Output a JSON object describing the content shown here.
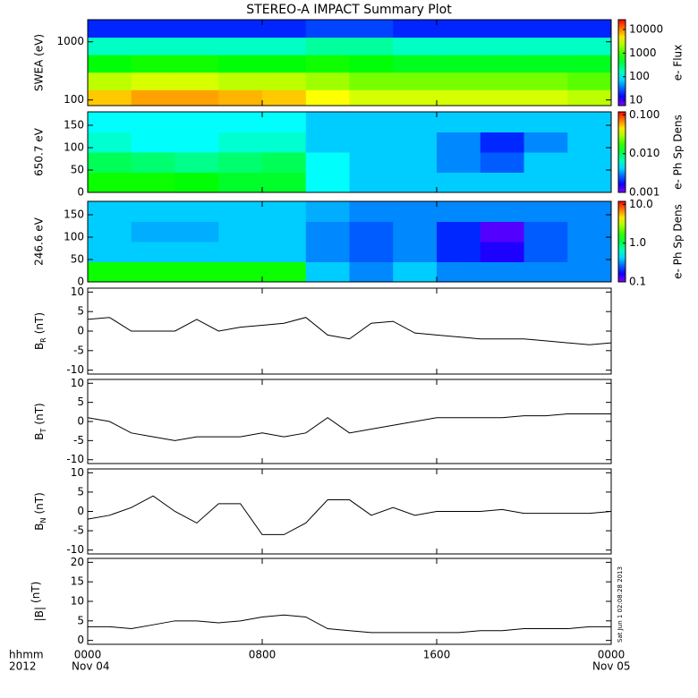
{
  "title": "STEREO-A IMPACT Summary Plot",
  "timestamp": "Sat Jun 1 02:08:28 2013",
  "x_axis": {
    "xlim": [
      0,
      24
    ],
    "xticks": [
      {
        "value": 0,
        "label": "0000"
      },
      {
        "value": 8,
        "label": "0800"
      },
      {
        "value": 16,
        "label": "1600"
      },
      {
        "value": 24,
        "label": "0000"
      }
    ],
    "dates": [
      "Nov 04",
      "Nov 05"
    ],
    "time_label": "hhmm",
    "year": "2012"
  },
  "chart_data": [
    {
      "type": "heatmap",
      "ylabel": "SWEA (eV)",
      "yscale": "log",
      "ylim": [
        80,
        2400
      ],
      "yticks": [
        100,
        1000
      ],
      "zlabel": "e- Flux",
      "zlim": [
        6,
        26000
      ],
      "zticks": [
        10,
        100,
        1000,
        10000
      ],
      "x": [
        0,
        2,
        4,
        6,
        8,
        10,
        12,
        14,
        16,
        18,
        20,
        22,
        24
      ],
      "y": [
        80,
        150,
        300,
        600,
        1200,
        2400
      ],
      "z": [
        [
          6000,
          8000,
          8000,
          7000,
          6000,
          4000,
          3000,
          3000,
          3000,
          3000,
          3000,
          2500
        ],
        [
          2500,
          3000,
          3000,
          2500,
          2500,
          2000,
          1500,
          1500,
          1500,
          1500,
          1500,
          1200
        ],
        [
          600,
          700,
          700,
          600,
          600,
          700,
          600,
          500,
          500,
          500,
          500,
          500
        ],
        [
          150,
          150,
          150,
          150,
          150,
          200,
          200,
          150,
          150,
          150,
          150,
          150
        ],
        [
          20,
          20,
          20,
          20,
          20,
          25,
          25,
          20,
          20,
          20,
          20,
          20
        ]
      ]
    },
    {
      "type": "heatmap",
      "ylabel": "650.7 eV",
      "yscale": "linear",
      "ylim": [
        0,
        180
      ],
      "yticks": [
        0,
        50,
        100,
        150
      ],
      "zlabel": "e- Ph Sp Dens",
      "zlim": [
        0.001,
        0.12
      ],
      "zticks": [
        0.001,
        {
          "value": 0.01,
          "label": "0.010"
        },
        {
          "value": 0.1,
          "label": "0.100"
        }
      ],
      "x": [
        0,
        2,
        4,
        6,
        8,
        10,
        12,
        14,
        16,
        18,
        20,
        22,
        24
      ],
      "y": [
        0,
        45,
        90,
        135,
        180
      ],
      "z": [
        [
          0.015,
          0.015,
          0.014,
          0.012,
          0.012,
          0.005,
          0.004,
          0.004,
          0.004,
          0.004,
          0.004,
          0.004
        ],
        [
          0.01,
          0.009,
          0.008,
          0.009,
          0.01,
          0.005,
          0.004,
          0.004,
          0.003,
          0.0025,
          0.004,
          0.004
        ],
        [
          0.006,
          0.005,
          0.005,
          0.006,
          0.006,
          0.004,
          0.004,
          0.004,
          0.003,
          0.002,
          0.003,
          0.004
        ],
        [
          0.005,
          0.005,
          0.005,
          0.005,
          0.005,
          0.004,
          0.004,
          0.004,
          0.004,
          0.004,
          0.004,
          0.004
        ]
      ]
    },
    {
      "type": "heatmap",
      "ylabel": "246.6 eV",
      "yscale": "linear",
      "ylim": [
        0,
        180
      ],
      "yticks": [
        0,
        50,
        100,
        150
      ],
      "zlabel": "e- Ph Sp Dens",
      "zlim": [
        0.1,
        12
      ],
      "zticks": [
        0.1,
        {
          "value": 1,
          "label": "1.0"
        },
        {
          "value": 10,
          "label": "10.0"
        }
      ],
      "x": [
        0,
        2,
        4,
        6,
        8,
        10,
        12,
        14,
        16,
        18,
        20,
        22,
        24
      ],
      "y": [
        0,
        45,
        90,
        135,
        180
      ],
      "z": [
        [
          1.5,
          1.5,
          1.5,
          1.5,
          1.5,
          0.4,
          0.3,
          0.4,
          0.3,
          0.3,
          0.3,
          0.3
        ],
        [
          0.4,
          0.4,
          0.4,
          0.4,
          0.4,
          0.3,
          0.25,
          0.3,
          0.2,
          0.15,
          0.25,
          0.3
        ],
        [
          0.4,
          0.35,
          0.35,
          0.4,
          0.4,
          0.3,
          0.25,
          0.3,
          0.2,
          0.12,
          0.25,
          0.3
        ],
        [
          0.4,
          0.4,
          0.4,
          0.4,
          0.4,
          0.35,
          0.3,
          0.3,
          0.3,
          0.3,
          0.3,
          0.3
        ]
      ]
    },
    {
      "type": "line",
      "ylabel": {
        "main": "B",
        "sub": "R",
        "unit": "(nT)"
      },
      "ylim": [
        -11,
        11
      ],
      "yticks": [
        -10,
        -5,
        0,
        5,
        10
      ],
      "color": "#000000",
      "x": [
        0,
        1,
        2,
        3,
        4,
        5,
        6,
        7,
        8,
        9,
        10,
        11,
        12,
        13,
        14,
        15,
        16,
        17,
        18,
        19,
        20,
        21,
        22,
        23,
        24
      ],
      "values": [
        3,
        3.5,
        0,
        0,
        0,
        3,
        0,
        1,
        1.5,
        2,
        3.5,
        -1,
        -2,
        2,
        2.5,
        -0.5,
        -1,
        -1.5,
        -2,
        -2,
        -2,
        -2.5,
        -3,
        -3.5,
        -3
      ]
    },
    {
      "type": "line",
      "ylabel": {
        "main": "B",
        "sub": "T",
        "unit": "(nT)"
      },
      "ylim": [
        -11,
        11
      ],
      "yticks": [
        -10,
        -5,
        0,
        5,
        10
      ],
      "color": "#000000",
      "x": [
        0,
        1,
        2,
        3,
        4,
        5,
        6,
        7,
        8,
        9,
        10,
        11,
        12,
        13,
        14,
        15,
        16,
        17,
        18,
        19,
        20,
        21,
        22,
        23,
        24
      ],
      "values": [
        1,
        0,
        -3,
        -4,
        -5,
        -4,
        -4,
        -4,
        -3,
        -4,
        -3,
        1,
        -3,
        -2,
        -1,
        0,
        1,
        1,
        1,
        1,
        1.5,
        1.5,
        2,
        2,
        2
      ]
    },
    {
      "type": "line",
      "ylabel": {
        "main": "B",
        "sub": "N",
        "unit": "(nT)"
      },
      "ylim": [
        -11,
        11
      ],
      "yticks": [
        -10,
        -5,
        0,
        5,
        10
      ],
      "color": "#000000",
      "x": [
        0,
        1,
        2,
        3,
        4,
        5,
        6,
        7,
        8,
        9,
        10,
        11,
        12,
        13,
        14,
        15,
        16,
        17,
        18,
        19,
        20,
        21,
        22,
        23,
        24
      ],
      "values": [
        -2,
        -1,
        1,
        4,
        0,
        -3,
        2,
        2,
        -6,
        -6,
        -3,
        3,
        3,
        -1,
        1,
        -1,
        0,
        0,
        0,
        0.5,
        -0.5,
        -0.5,
        -0.5,
        -0.5,
        0
      ]
    },
    {
      "type": "line",
      "ylabel": {
        "main": "|B|",
        "sub": "",
        "unit": "(nT)"
      },
      "ylim": [
        -1,
        21
      ],
      "yticks": [
        0,
        5,
        10,
        15,
        20
      ],
      "color": "#000000",
      "x": [
        0,
        1,
        2,
        3,
        4,
        5,
        6,
        7,
        8,
        9,
        10,
        11,
        12,
        13,
        14,
        15,
        16,
        17,
        18,
        19,
        20,
        21,
        22,
        23,
        24
      ],
      "values": [
        3.5,
        3.5,
        3,
        4,
        5,
        5,
        4.5,
        5,
        6,
        6.5,
        6,
        3,
        2.5,
        2,
        2,
        2,
        2,
        2,
        2.5,
        2.5,
        3,
        3,
        3,
        3.5,
        3.5
      ]
    }
  ]
}
